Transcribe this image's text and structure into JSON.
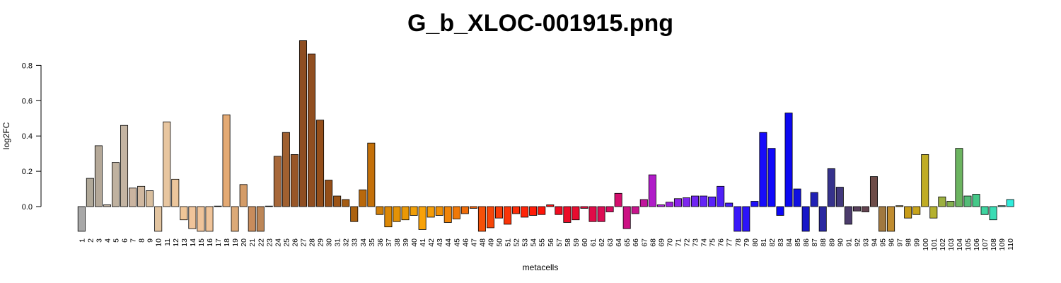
{
  "chart_data": {
    "type": "bar",
    "title": "G_b_XLOC-001915.png",
    "xlabel": "metacells",
    "ylabel": "log2FC",
    "ylim": [
      -0.14,
      0.94
    ],
    "y_ticks": [
      "0.0",
      "0.2",
      "0.4",
      "0.6",
      "0.8"
    ],
    "y_tick_values": [
      0,
      0.2,
      0.4,
      0.6,
      0.8
    ],
    "grid": false,
    "categories": [
      "1",
      "2",
      "3",
      "4",
      "5",
      "6",
      "7",
      "8",
      "9",
      "10",
      "11",
      "12",
      "13",
      "14",
      "15",
      "16",
      "17",
      "18",
      "19",
      "20",
      "21",
      "22",
      "23",
      "24",
      "25",
      "26",
      "27",
      "28",
      "29",
      "30",
      "31",
      "32",
      "33",
      "34",
      "35",
      "36",
      "37",
      "38",
      "39",
      "40",
      "41",
      "42",
      "43",
      "44",
      "45",
      "46",
      "47",
      "48",
      "49",
      "50",
      "51",
      "52",
      "53",
      "54",
      "55",
      "56",
      "57",
      "58",
      "59",
      "60",
      "61",
      "62",
      "63",
      "64",
      "65",
      "66",
      "67",
      "68",
      "69",
      "70",
      "71",
      "72",
      "73",
      "74",
      "75",
      "76",
      "77",
      "78",
      "79",
      "80",
      "81",
      "82",
      "83",
      "84",
      "85",
      "86",
      "87",
      "88",
      "89",
      "90",
      "91",
      "92",
      "93",
      "94",
      "95",
      "96",
      "97",
      "98",
      "99",
      "100",
      "101",
      "102",
      "103",
      "104",
      "105",
      "106",
      "107",
      "108",
      "109",
      "110"
    ],
    "values": [
      -0.14,
      0.16,
      0.345,
      0.01,
      0.25,
      0.46,
      0.105,
      0.115,
      0.09,
      -0.14,
      0.48,
      0.155,
      -0.075,
      -0.125,
      -0.14,
      -0.14,
      0.0,
      0.52,
      -0.14,
      0.125,
      -0.14,
      -0.14,
      0.0,
      0.285,
      0.42,
      0.295,
      0.94,
      0.865,
      0.49,
      0.15,
      0.06,
      0.04,
      -0.085,
      0.095,
      0.36,
      -0.045,
      -0.115,
      -0.085,
      -0.075,
      -0.05,
      -0.13,
      -0.06,
      -0.05,
      -0.09,
      -0.07,
      -0.04,
      -0.01,
      -0.14,
      -0.12,
      -0.065,
      -0.1,
      -0.04,
      -0.06,
      -0.05,
      -0.045,
      0.01,
      -0.045,
      -0.09,
      -0.075,
      -0.01,
      -0.085,
      -0.085,
      -0.03,
      0.075,
      -0.125,
      -0.04,
      0.04,
      0.18,
      0.01,
      0.025,
      0.045,
      0.05,
      0.06,
      0.06,
      0.055,
      0.115,
      0.02,
      -0.14,
      -0.14,
      0.03,
      0.42,
      0.33,
      -0.05,
      0.53,
      0.1,
      -0.14,
      0.08,
      -0.14,
      0.215,
      0.11,
      -0.1,
      -0.025,
      -0.03,
      0.17,
      -0.14,
      -0.14,
      0.005,
      -0.065,
      -0.045,
      0.295,
      -0.065,
      0.055,
      0.03,
      0.33,
      0.06,
      0.07,
      -0.045,
      -0.075,
      0.005,
      0.04
    ],
    "colors": [
      "#a8a8a8",
      "#b0a898",
      "#b4a898",
      "#bcae9e",
      "#c0b2a0",
      "#c4b4a2",
      "#cab4a0",
      "#d0b8a0",
      "#d8be9e",
      "#e2c4a0",
      "#e8c6a0",
      "#ecc69c",
      "#f0c698",
      "#f0c49a",
      "#f0c49a",
      "#f0c49a",
      "#eec090",
      "#e4aa74",
      "#dcaa78",
      "#d49c68",
      "#c88c5c",
      "#bc8658",
      "#aa7040",
      "#a8683a",
      "#a06030",
      "#985628",
      "#8e4e22",
      "#904e20",
      "#944e1a",
      "#944e18",
      "#9c5416",
      "#a45c14",
      "#ac6210",
      "#b8680c",
      "#c47008",
      "#d07e08",
      "#dc8806",
      "#e49206",
      "#ea9806",
      "#f09e06",
      "#f8a208",
      "#f49c08",
      "#f09006",
      "#f08408",
      "#f07808",
      "#f06c08",
      "#f26008",
      "#f45008",
      "#f64608",
      "#f83c08",
      "#fa3408",
      "#fc2c08",
      "#fe2408",
      "#fe1c08",
      "#fe1408",
      "#f80c0c",
      "#f00c20",
      "#ec0c28",
      "#e80c30",
      "#e40c3c",
      "#e00c48",
      "#dc0c54",
      "#d80c60",
      "#d4106e",
      "#cc1084",
      "#c8148c",
      "#c0149c",
      "#b01cc8",
      "#a820d4",
      "#9a22dc",
      "#8c24e8",
      "#7e26ee",
      "#7024f2",
      "#6424f6",
      "#5a22f8",
      "#5020f8",
      "#461cf8",
      "#3a18f8",
      "#2c14fa",
      "#2010fa",
      "#180cfa",
      "#1008fa",
      "#0c06f8",
      "#0c08f0",
      "#1010e0",
      "#1818c8",
      "#2020b4",
      "#2a28a0",
      "#36328c",
      "#42387c",
      "#4c3c6c",
      "#58405c",
      "#644450",
      "#6e4c48",
      "#a07840",
      "#c08c30",
      "#c8941c",
      "#c89c18",
      "#c8a41c",
      "#c0ac24",
      "#b4b030",
      "#9cb040",
      "#84b050",
      "#6cb460",
      "#54bc78",
      "#44c888",
      "#3ed4a0",
      "#3adcb4",
      "#36e4c8",
      "#30ecdc",
      "#20f4f0"
    ]
  }
}
